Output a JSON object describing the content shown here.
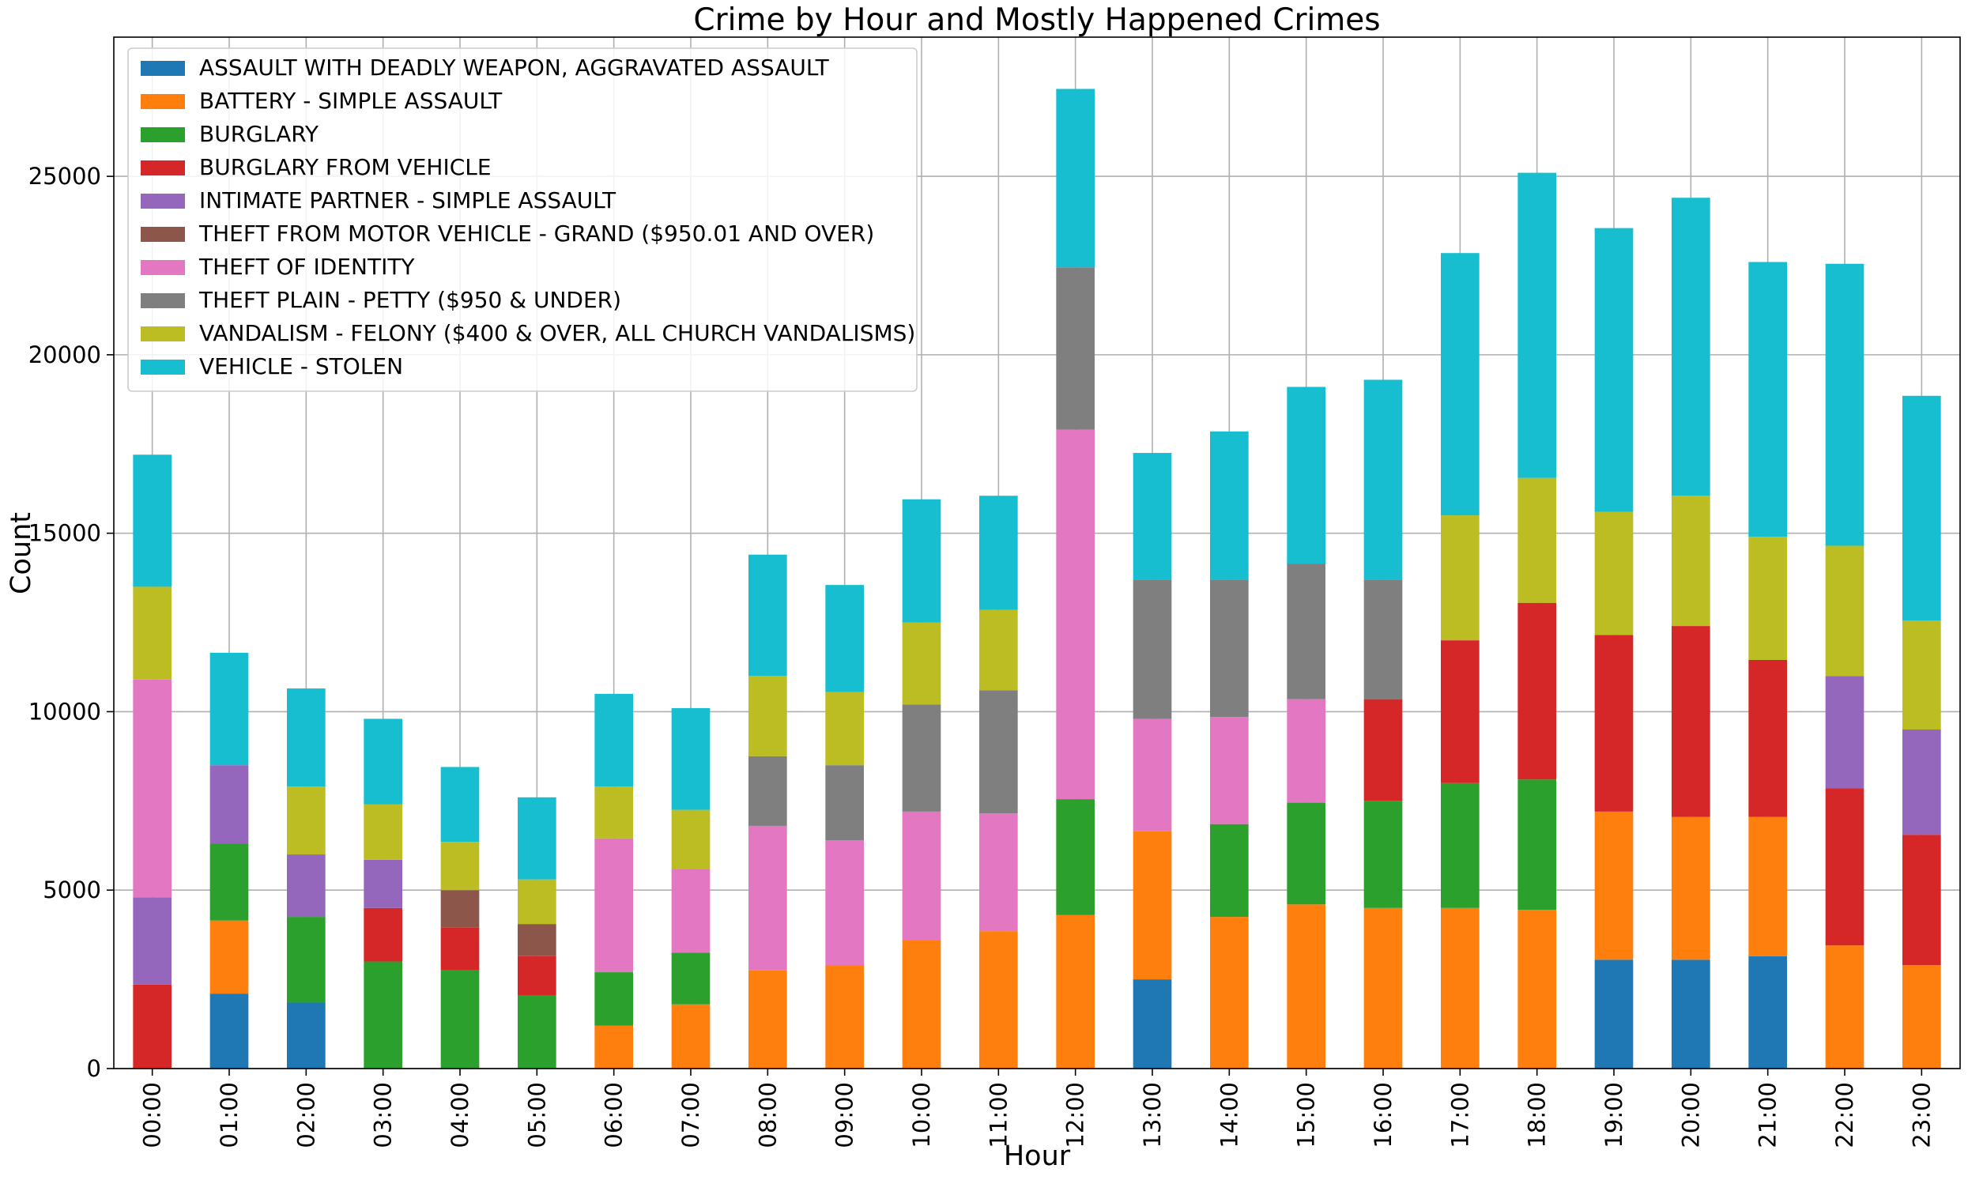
{
  "chart_data": {
    "type": "bar",
    "stacked": true,
    "title": "Crime by Hour and Mostly Happened Crimes",
    "xlabel": "Hour",
    "ylabel": "Count",
    "ylim": [
      0,
      28900
    ],
    "yticks": [
      0,
      5000,
      10000,
      15000,
      20000,
      25000
    ],
    "grid": true,
    "legend_position": "top-left",
    "categories": [
      "00:00",
      "01:00",
      "02:00",
      "03:00",
      "04:00",
      "05:00",
      "06:00",
      "07:00",
      "08:00",
      "09:00",
      "10:00",
      "11:00",
      "12:00",
      "13:00",
      "14:00",
      "15:00",
      "16:00",
      "17:00",
      "18:00",
      "19:00",
      "20:00",
      "21:00",
      "22:00",
      "23:00"
    ],
    "series": [
      {
        "name": "ASSAULT WITH DEADLY WEAPON, AGGRAVATED ASSAULT",
        "color": "#1f77b4",
        "values": [
          0,
          2100,
          1850,
          0,
          0,
          0,
          0,
          0,
          0,
          0,
          0,
          0,
          0,
          2500,
          0,
          0,
          0,
          0,
          0,
          3050,
          3050,
          3150,
          0,
          0
        ]
      },
      {
        "name": "BATTERY - SIMPLE ASSAULT",
        "color": "#ff7f0e",
        "values": [
          0,
          2050,
          0,
          0,
          0,
          0,
          1200,
          1800,
          2750,
          2900,
          3600,
          3850,
          4300,
          4150,
          4250,
          4600,
          4500,
          4500,
          4450,
          4150,
          4000,
          3900,
          3450,
          2900
        ]
      },
      {
        "name": "BURGLARY",
        "color": "#2ca02c",
        "values": [
          0,
          2150,
          2400,
          3000,
          2750,
          2050,
          1500,
          1450,
          0,
          0,
          0,
          0,
          3250,
          0,
          2600,
          2850,
          3000,
          3500,
          3650,
          0,
          0,
          0,
          0,
          0
        ]
      },
      {
        "name": "BURGLARY FROM VEHICLE",
        "color": "#d62728",
        "values": [
          2350,
          0,
          0,
          1500,
          1200,
          1100,
          0,
          0,
          0,
          0,
          0,
          0,
          0,
          0,
          0,
          0,
          2850,
          4000,
          4950,
          4950,
          5350,
          4400,
          4400,
          3650
        ]
      },
      {
        "name": "INTIMATE PARTNER - SIMPLE ASSAULT",
        "color": "#9467bd",
        "values": [
          2450,
          2200,
          1750,
          1350,
          0,
          0,
          0,
          0,
          0,
          0,
          0,
          0,
          0,
          0,
          0,
          0,
          0,
          0,
          0,
          0,
          0,
          0,
          3150,
          2950
        ]
      },
      {
        "name": "THEFT FROM MOTOR VEHICLE - GRAND ($950.01 AND OVER)",
        "color": "#8c564b",
        "values": [
          0,
          0,
          0,
          0,
          1050,
          900,
          0,
          0,
          0,
          0,
          0,
          0,
          0,
          0,
          0,
          0,
          0,
          0,
          0,
          0,
          0,
          0,
          0,
          0
        ]
      },
      {
        "name": "THEFT OF IDENTITY",
        "color": "#e377c2",
        "values": [
          6100,
          0,
          0,
          0,
          0,
          0,
          3750,
          2350,
          4050,
          3500,
          3600,
          3300,
          10350,
          3150,
          3000,
          2900,
          0,
          0,
          0,
          0,
          0,
          0,
          0,
          0
        ]
      },
      {
        "name": "THEFT PLAIN - PETTY ($950 & UNDER)",
        "color": "#7f7f7f",
        "values": [
          0,
          0,
          0,
          0,
          0,
          0,
          0,
          0,
          1950,
          2100,
          3000,
          3450,
          4550,
          3900,
          3850,
          3800,
          3350,
          0,
          0,
          0,
          0,
          0,
          0,
          0
        ]
      },
      {
        "name": "VANDALISM - FELONY ($400 & OVER, ALL CHURCH VANDALISMS)",
        "color": "#bcbd22",
        "values": [
          2600,
          0,
          1900,
          1550,
          1350,
          1250,
          1450,
          1650,
          2250,
          2050,
          2300,
          2250,
          0,
          0,
          0,
          0,
          0,
          3500,
          3500,
          3450,
          3650,
          3450,
          3650,
          3050
        ]
      },
      {
        "name": "VEHICLE - STOLEN",
        "color": "#17becf",
        "values": [
          3700,
          3150,
          2750,
          2400,
          2100,
          2300,
          2600,
          2850,
          3400,
          3000,
          3450,
          3200,
          5000,
          3550,
          4150,
          4950,
          5600,
          7350,
          8550,
          7950,
          8350,
          7700,
          7900,
          6300
        ]
      }
    ]
  }
}
